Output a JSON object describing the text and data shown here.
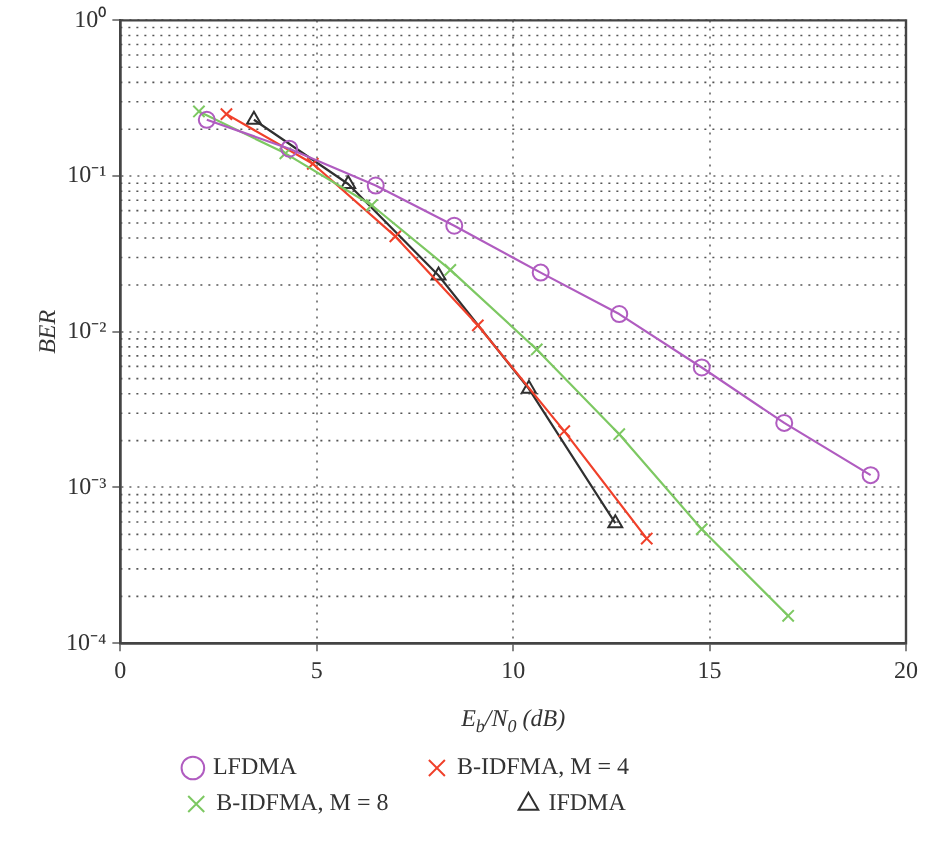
{
  "chart_data": {
    "type": "line",
    "xlabel": "E$_{b}$/N$_{0}$ (dB)",
    "ylabel": "BER",
    "log": true,
    "grid": true,
    "legend": "bottom",
    "xlim": [
      0,
      20
    ],
    "xticks": [
      0,
      5,
      10,
      15,
      20
    ],
    "ylim": [
      0.0001,
      1
    ],
    "yticks": [
      {
        "value": 0.0001,
        "label": "10⁻⁴"
      },
      {
        "value": 0.001,
        "label": "10⁻³"
      },
      {
        "value": 0.01,
        "label": "10⁻²"
      },
      {
        "value": 0.1,
        "label": "10⁻¹"
      },
      {
        "value": 1,
        "label": "10⁰"
      }
    ],
    "series": [
      {
        "name": "LFDMA",
        "color": "#b05cc0",
        "marker": "circle",
        "x": [
          2.2,
          4.3,
          6.5,
          8.5,
          10.7,
          12.7,
          14.8,
          16.9,
          19.1
        ],
        "values": [
          0.23,
          0.15,
          0.087,
          0.048,
          0.024,
          0.013,
          0.0059,
          0.0026,
          0.0012
        ]
      },
      {
        "name": "B-IDFMA, M = 8",
        "color": "#7dc862",
        "marker": "cross",
        "x": [
          2.0,
          4.2,
          6.4,
          8.4,
          10.6,
          12.7,
          14.8,
          17.0
        ],
        "values": [
          0.26,
          0.14,
          0.065,
          0.025,
          0.0077,
          0.0022,
          0.00054,
          0.00015
        ]
      },
      {
        "name": "B-IDFMA, M = 4",
        "color": "#f0402a",
        "marker": "cross",
        "x": [
          2.7,
          4.9,
          7.0,
          9.1,
          11.3,
          13.4
        ],
        "values": [
          0.25,
          0.12,
          0.041,
          0.011,
          0.0023,
          0.00047
        ]
      },
      {
        "name": "IFDMA",
        "color": "#303030",
        "marker": "triangle",
        "x": [
          3.4,
          5.8,
          8.1,
          10.4,
          12.6
        ],
        "values": [
          0.23,
          0.089,
          0.023,
          0.0043,
          0.00059
        ]
      }
    ]
  }
}
